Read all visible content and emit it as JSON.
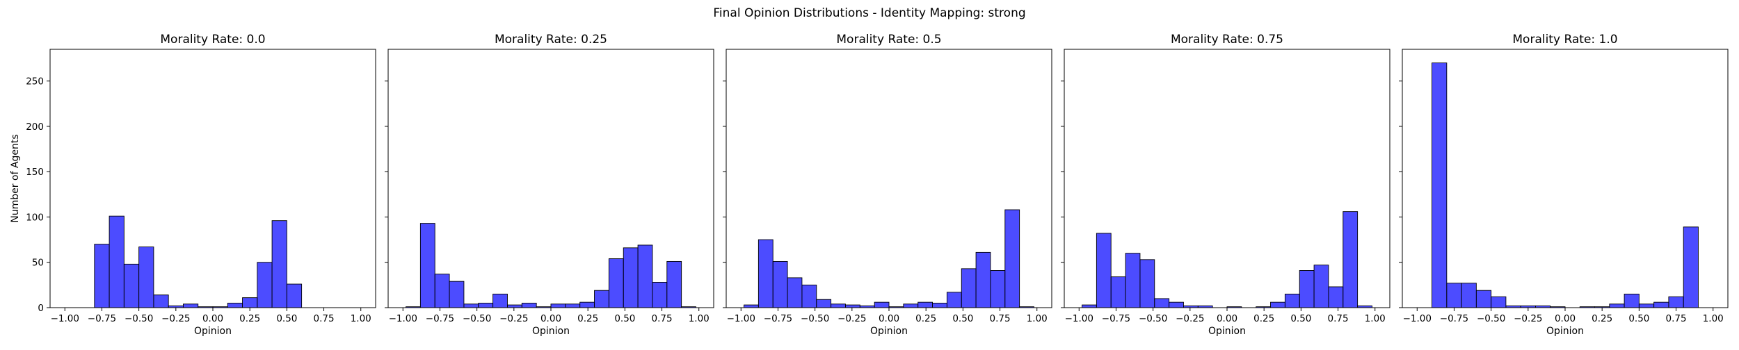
{
  "figure": {
    "title": "Final Opinion Distributions - Identity Mapping: strong",
    "bar_color": "#0000ff"
  },
  "chart_data": [
    {
      "type": "bar",
      "title": "Morality Rate: 0.0",
      "xlabel": "Opinion",
      "ylabel": "Number of Agents",
      "xlim": [
        -1.1,
        1.1
      ],
      "ylim": [
        0,
        285
      ],
      "xticks": [
        -1.0,
        -0.75,
        -0.5,
        -0.25,
        0.0,
        0.25,
        0.5,
        0.75,
        1.0
      ],
      "xtick_labels": [
        "−1.00",
        "−0.75",
        "−0.50",
        "−0.25",
        "0.00",
        "0.25",
        "0.50",
        "0.75",
        "1.00"
      ],
      "yticks": [
        0,
        50,
        100,
        150,
        200,
        250
      ],
      "ytick_labels": [
        "0",
        "50",
        "100",
        "150",
        "200",
        "250"
      ],
      "bin_start": -0.8,
      "bin_width": 0.1,
      "values": [
        70,
        101,
        48,
        67,
        14,
        2,
        4,
        1,
        1,
        5,
        11,
        50,
        96,
        26
      ]
    },
    {
      "type": "bar",
      "title": "Morality Rate: 0.25",
      "xlabel": "Opinion",
      "xlim": [
        -1.1,
        1.1
      ],
      "ylim": [
        0,
        285
      ],
      "xticks": [
        -1.0,
        -0.75,
        -0.5,
        -0.25,
        0.0,
        0.25,
        0.5,
        0.75,
        1.0
      ],
      "xtick_labels": [
        "−1.00",
        "−0.75",
        "−0.50",
        "−0.25",
        "0.00",
        "0.25",
        "0.50",
        "0.75",
        "1.00"
      ],
      "yticks": [
        0,
        50,
        100,
        150,
        200,
        250
      ],
      "bin_start": -0.98,
      "bin_width": 0.098,
      "values": [
        1,
        93,
        37,
        29,
        4,
        5,
        15,
        3,
        5,
        1,
        4,
        4,
        6,
        19,
        54,
        66,
        69,
        28,
        51,
        1
      ]
    },
    {
      "type": "bar",
      "title": "Morality Rate: 0.5",
      "xlabel": "Opinion",
      "xlim": [
        -1.1,
        1.1
      ],
      "ylim": [
        0,
        285
      ],
      "xticks": [
        -1.0,
        -0.75,
        -0.5,
        -0.25,
        0.0,
        0.25,
        0.5,
        0.75,
        1.0
      ],
      "xtick_labels": [
        "−1.00",
        "−0.75",
        "−0.50",
        "−0.25",
        "0.00",
        "0.25",
        "0.50",
        "0.75",
        "1.00"
      ],
      "yticks": [
        0,
        50,
        100,
        150,
        200,
        250
      ],
      "bin_start": -0.98,
      "bin_width": 0.098,
      "values": [
        3,
        75,
        51,
        33,
        25,
        9,
        4,
        3,
        2,
        6,
        1,
        4,
        6,
        5,
        17,
        43,
        61,
        41,
        108,
        1
      ]
    },
    {
      "type": "bar",
      "title": "Morality Rate: 0.75",
      "xlabel": "Opinion",
      "xlim": [
        -1.1,
        1.1
      ],
      "ylim": [
        0,
        285
      ],
      "xticks": [
        -1.0,
        -0.75,
        -0.5,
        -0.25,
        0.0,
        0.25,
        0.5,
        0.75,
        1.0
      ],
      "xtick_labels": [
        "−1.00",
        "−0.75",
        "−0.50",
        "−0.25",
        "0.00",
        "0.25",
        "0.50",
        "0.75",
        "1.00"
      ],
      "yticks": [
        0,
        50,
        100,
        150,
        200,
        250
      ],
      "bin_start": -0.98,
      "bin_width": 0.098,
      "values": [
        3,
        82,
        34,
        60,
        53,
        10,
        6,
        2,
        2,
        0,
        1,
        0,
        1,
        6,
        15,
        41,
        47,
        23,
        106,
        2
      ]
    },
    {
      "type": "bar",
      "title": "Morality Rate: 1.0",
      "xlabel": "Opinion",
      "xlim": [
        -1.1,
        1.1
      ],
      "ylim": [
        0,
        285
      ],
      "xticks": [
        -1.0,
        -0.75,
        -0.5,
        -0.25,
        0.0,
        0.25,
        0.5,
        0.75,
        1.0
      ],
      "xtick_labels": [
        "−1.00",
        "−0.75",
        "−0.50",
        "−0.25",
        "0.00",
        "0.25",
        "0.50",
        "0.75",
        "1.00"
      ],
      "yticks": [
        0,
        50,
        100,
        150,
        200,
        250
      ],
      "bin_start": -0.9,
      "bin_width": 0.1,
      "values": [
        270,
        27,
        27,
        19,
        12,
        2,
        2,
        2,
        1,
        0,
        1,
        1,
        4,
        15,
        4,
        6,
        12,
        89
      ]
    }
  ]
}
